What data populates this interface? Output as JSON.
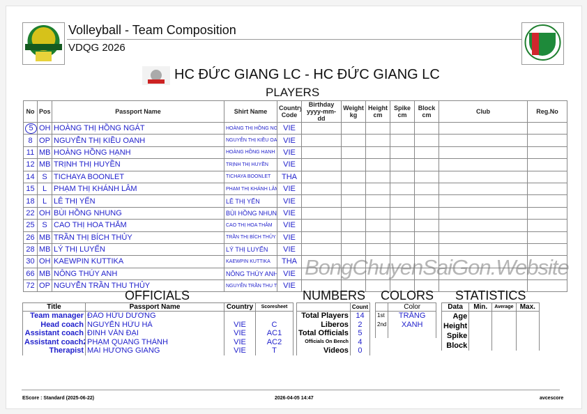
{
  "header": {
    "title": "Volleyball - Team Composition",
    "competition": "VDQG 2026",
    "team_title": "HC ĐỨC GIANG LC - HC ĐỨC GIANG LC",
    "section": "PLAYERS"
  },
  "players": {
    "columns": [
      "No",
      "Pos",
      "Passport Name",
      "Shirt Name",
      "Country Code",
      "Birthday yyyy-mm-dd",
      "Weight kg",
      "Height cm",
      "Spike cm",
      "Block cm",
      "Club",
      "Reg.No"
    ],
    "rows": [
      {
        "no": "5",
        "pos": "OH",
        "name": "HOÀNG THỊ HỒNG NGÁT",
        "shirt": "HOÀNG THỊ HỒNG NGÁT",
        "country": "VIE",
        "captain": true
      },
      {
        "no": "8",
        "pos": "OP",
        "name": "NGUYỄN THỊ KIỀU OANH",
        "shirt": "NGUYỄN THỊ KIỀU OANH",
        "country": "VIE"
      },
      {
        "no": "11",
        "pos": "MB",
        "name": "HOÀNG HỒNG HẠNH",
        "shirt": "HOÀNG HỒNG HẠNH",
        "country": "VIE"
      },
      {
        "no": "12",
        "pos": "MB",
        "name": "TRỊNH THỊ HUYỀN",
        "shirt": "TRỊNH THỊ HUYỀN",
        "country": "VIE"
      },
      {
        "no": "14",
        "pos": "S",
        "name": "TICHAYA BOONLET",
        "shirt": "TICHAYA BOONLET",
        "country": "THA"
      },
      {
        "no": "15",
        "pos": "L",
        "name": "PHẠM THỊ KHÁNH LÂM",
        "shirt": "PHẠM THỊ KHÁNH LÂM",
        "country": "VIE"
      },
      {
        "no": "18",
        "pos": "L",
        "name": "LÊ THỊ YẾN",
        "shirt": "LÊ THỊ YẾN",
        "country": "VIE"
      },
      {
        "no": "22",
        "pos": "OH",
        "name": "BÙI HỒNG NHUNG",
        "shirt": "BÙI HỒNG NHUNG",
        "country": "VIE"
      },
      {
        "no": "25",
        "pos": "S",
        "name": "CAO THỊ HOA THẮM",
        "shirt": "CAO THỊ HOA THẮM",
        "country": "VIE"
      },
      {
        "no": "26",
        "pos": "MB",
        "name": "TRẦN THỊ BÍCH THỦY",
        "shirt": "TRẦN THỊ BÍCH THỦY",
        "country": "VIE"
      },
      {
        "no": "28",
        "pos": "MB",
        "name": "LÝ THỊ LUYẾN",
        "shirt": "LÝ THỊ LUYẾN",
        "country": "VIE"
      },
      {
        "no": "30",
        "pos": "OH",
        "name": "KAEWPIN KUTTIKA",
        "shirt": "KAEWPIN KUTTIKA",
        "country": "THA"
      },
      {
        "no": "66",
        "pos": "MB",
        "name": "NÔNG THÚY ANH",
        "shirt": "NÔNG THÚY ANH",
        "country": "VIE"
      },
      {
        "no": "72",
        "pos": "OP",
        "name": "NGUYỄN TRẦN THU THỦY",
        "shirt": "NGUYỄN TRẦN THU THỦY",
        "country": "VIE"
      }
    ]
  },
  "officials": {
    "heading": "OFFICIALS",
    "columns": [
      "Title",
      "Passport Name",
      "Country",
      "Scoresheet"
    ],
    "rows": [
      {
        "title": "Team manager",
        "name": "ĐÀO HỮU DƯƠNG",
        "country": "",
        "code": ""
      },
      {
        "title": "Head coach",
        "name": "NGUYỄN HỮU HÀ",
        "country": "VIE",
        "code": "C"
      },
      {
        "title": "Assistant coach",
        "name": "ĐINH VĂN ĐẠI",
        "country": "VIE",
        "code": "AC1"
      },
      {
        "title": "Assistant coach2",
        "name": "PHẠM QUANG THÀNH",
        "country": "VIE",
        "code": "AC2"
      },
      {
        "title": "Therapist",
        "name": "MAI HƯƠNG GIANG",
        "country": "VIE",
        "code": "T"
      }
    ]
  },
  "numbers": {
    "heading": "NUMBERS",
    "count_label": "Count",
    "rows": [
      {
        "label": "Total Players",
        "value": "14"
      },
      {
        "label": "Liberos",
        "value": "2"
      },
      {
        "label": "Total Officials",
        "value": "5"
      },
      {
        "label": "Officials On Bench",
        "value": "4"
      },
      {
        "label": "Videos",
        "value": "0"
      }
    ]
  },
  "colors": {
    "heading": "COLORS",
    "color_label": "Color",
    "rows": [
      {
        "ord": "1st",
        "color": "TRẮNG"
      },
      {
        "ord": "2nd",
        "color": "XANH"
      }
    ]
  },
  "statistics": {
    "heading": "STATISTICS",
    "columns": [
      "Data",
      "Min.",
      "Average",
      "Max."
    ],
    "rows": [
      "Age",
      "Height",
      "Spike",
      "Block"
    ]
  },
  "watermark": "BongChuyenSaiGon.Website",
  "footer": {
    "left": "EScore : Standard (2025-06-22)",
    "center": "2026-04-05 14:47",
    "right": "avcescore"
  },
  "logos": {
    "left": "VÔ ĐỊCH QUỐC GIA NĂM 2026",
    "right": "LIÊN ĐOÀN BÓNG CHUYỀN VIỆT NAM VFV",
    "team": "ĐỨC GIANG"
  },
  "colors_theme": {
    "text_blue": "#2222cc"
  }
}
